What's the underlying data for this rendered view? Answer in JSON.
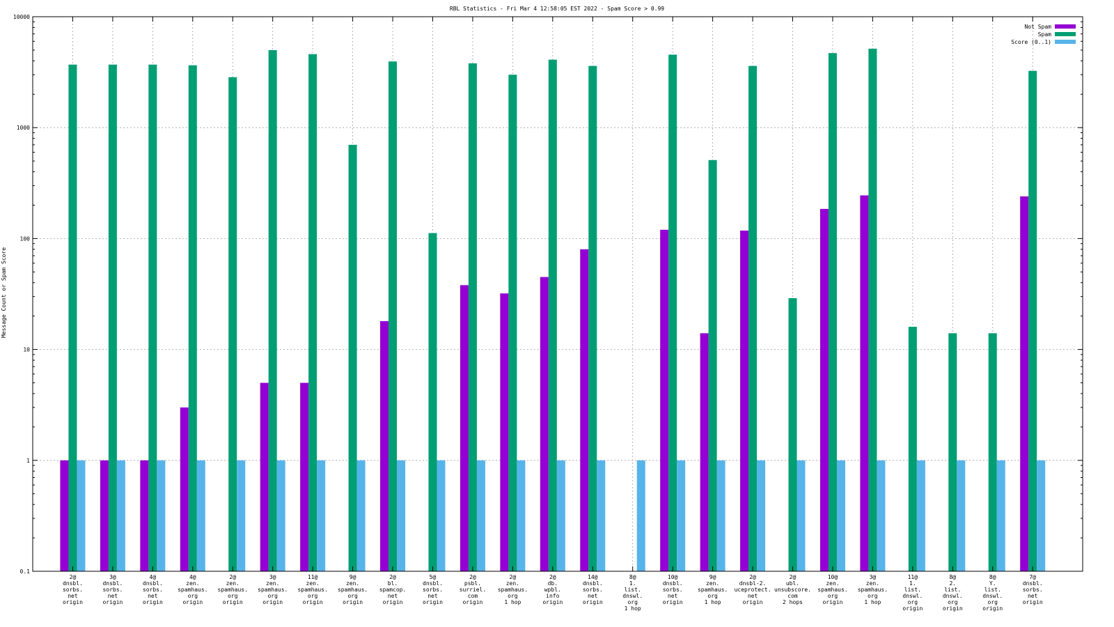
{
  "chart_data": {
    "type": "bar",
    "title": "RBL Statistics - Fri Mar  4 12:58:05 EST 2022 - Spam Score > 0.99",
    "ylabel": "Message Count or Spam Score",
    "xlabel": "",
    "yscale": "log",
    "ylim": [
      0.1,
      10000
    ],
    "grid": true,
    "legend_position": "top-right",
    "y_ticks": [
      {
        "value": 0.1,
        "label": "0.1"
      },
      {
        "value": 1,
        "label": "1"
      },
      {
        "value": 10,
        "label": "10"
      },
      {
        "value": 100,
        "label": "100"
      },
      {
        "value": 1000,
        "label": "1000"
      },
      {
        "value": 10000,
        "label": "10000"
      }
    ],
    "categories": [
      {
        "id": "cat-01",
        "label": [
          "2@",
          "dnsbl.",
          "sorbs.",
          "net",
          "origin"
        ]
      },
      {
        "id": "cat-02",
        "label": [
          "3@",
          "dnsbl.",
          "sorbs.",
          "net",
          "origin"
        ]
      },
      {
        "id": "cat-03",
        "label": [
          "4@",
          "dnsbl.",
          "sorbs.",
          "net",
          "origin"
        ]
      },
      {
        "id": "cat-04",
        "label": [
          "4@",
          "zen.",
          "spamhaus.",
          "org",
          "origin"
        ]
      },
      {
        "id": "cat-05",
        "label": [
          "2@",
          "zen.",
          "spamhaus.",
          "org",
          "origin"
        ]
      },
      {
        "id": "cat-06",
        "label": [
          "3@",
          "zen.",
          "spamhaus.",
          "org",
          "origin"
        ]
      },
      {
        "id": "cat-07",
        "label": [
          "11@",
          "zen.",
          "spamhaus.",
          "org",
          "origin"
        ]
      },
      {
        "id": "cat-08",
        "label": [
          "9@",
          "zen.",
          "spamhaus.",
          "org",
          "origin"
        ]
      },
      {
        "id": "cat-09",
        "label": [
          "2@",
          "bl.",
          "spamcop.",
          "net",
          "origin"
        ]
      },
      {
        "id": "cat-10",
        "label": [
          "5@",
          "dnsbl.",
          "sorbs.",
          "net",
          "origin"
        ]
      },
      {
        "id": "cat-11",
        "label": [
          "2@",
          "psbl.",
          "surriel.",
          "com",
          "origin"
        ]
      },
      {
        "id": "cat-12",
        "label": [
          "2@",
          "zen.",
          "spamhaus.",
          "org",
          "1 hop"
        ]
      },
      {
        "id": "cat-13",
        "label": [
          "2@",
          "db.",
          "wpbl.",
          "info",
          "origin"
        ]
      },
      {
        "id": "cat-14",
        "label": [
          "14@",
          "dnsbl.",
          "sorbs.",
          "net",
          "origin"
        ]
      },
      {
        "id": "cat-15",
        "label": [
          "8@",
          "1.",
          "list.",
          "dnswl.",
          "org",
          "1 hop"
        ]
      },
      {
        "id": "cat-16",
        "label": [
          "10@",
          "dnsbl.",
          "sorbs.",
          "net",
          "origin"
        ]
      },
      {
        "id": "cat-17",
        "label": [
          "9@",
          "zen.",
          "spamhaus.",
          "org",
          "1 hop"
        ]
      },
      {
        "id": "cat-18",
        "label": [
          "2@",
          "dnsbl-2.",
          "uceprotect.",
          "net",
          "origin"
        ]
      },
      {
        "id": "cat-19",
        "label": [
          "2@",
          "ubl.",
          "unsubscore.",
          "com",
          "2 hops"
        ]
      },
      {
        "id": "cat-20",
        "label": [
          "10@",
          "zen.",
          "spamhaus.",
          "org",
          "origin"
        ]
      },
      {
        "id": "cat-21",
        "label": [
          "3@",
          "zen.",
          "spamhaus.",
          "org",
          "1 hop"
        ]
      },
      {
        "id": "cat-22",
        "label": [
          "11@",
          "1.",
          "list.",
          "dnswl.",
          "org",
          "origin"
        ]
      },
      {
        "id": "cat-23",
        "label": [
          "8@",
          "2.",
          "list.",
          "dnswl.",
          "org",
          "origin"
        ]
      },
      {
        "id": "cat-24",
        "label": [
          "8@",
          "Y.",
          "list.",
          "dnswl.",
          "org",
          "origin"
        ]
      },
      {
        "id": "cat-25",
        "label": [
          "7@",
          "dnsbl.",
          "sorbs.",
          "net",
          "origin"
        ]
      }
    ],
    "series": [
      {
        "id": "not-spam",
        "name": "Not Spam",
        "color": "#9400d3",
        "values": [
          1,
          1,
          1,
          3,
          null,
          5,
          5,
          null,
          18,
          null,
          38,
          32,
          45,
          80,
          null,
          120,
          14,
          118,
          null,
          185,
          245,
          null,
          null,
          null,
          240
        ]
      },
      {
        "id": "spam",
        "name": "Spam",
        "color": "#009e73",
        "values": [
          3700,
          3700,
          3700,
          3650,
          2850,
          5000,
          4600,
          700,
          3950,
          112,
          3800,
          3000,
          4100,
          3600,
          null,
          4550,
          510,
          3600,
          29,
          4700,
          5150,
          16,
          14,
          14,
          3250
        ]
      },
      {
        "id": "score",
        "name": "Score (0..1)",
        "color": "#56b4e9",
        "values": [
          1,
          1,
          1,
          1,
          1,
          1,
          1,
          1,
          1,
          1,
          1,
          1,
          1,
          1,
          1,
          1,
          1,
          1,
          1,
          1,
          1,
          1,
          1,
          1,
          1
        ]
      }
    ]
  }
}
